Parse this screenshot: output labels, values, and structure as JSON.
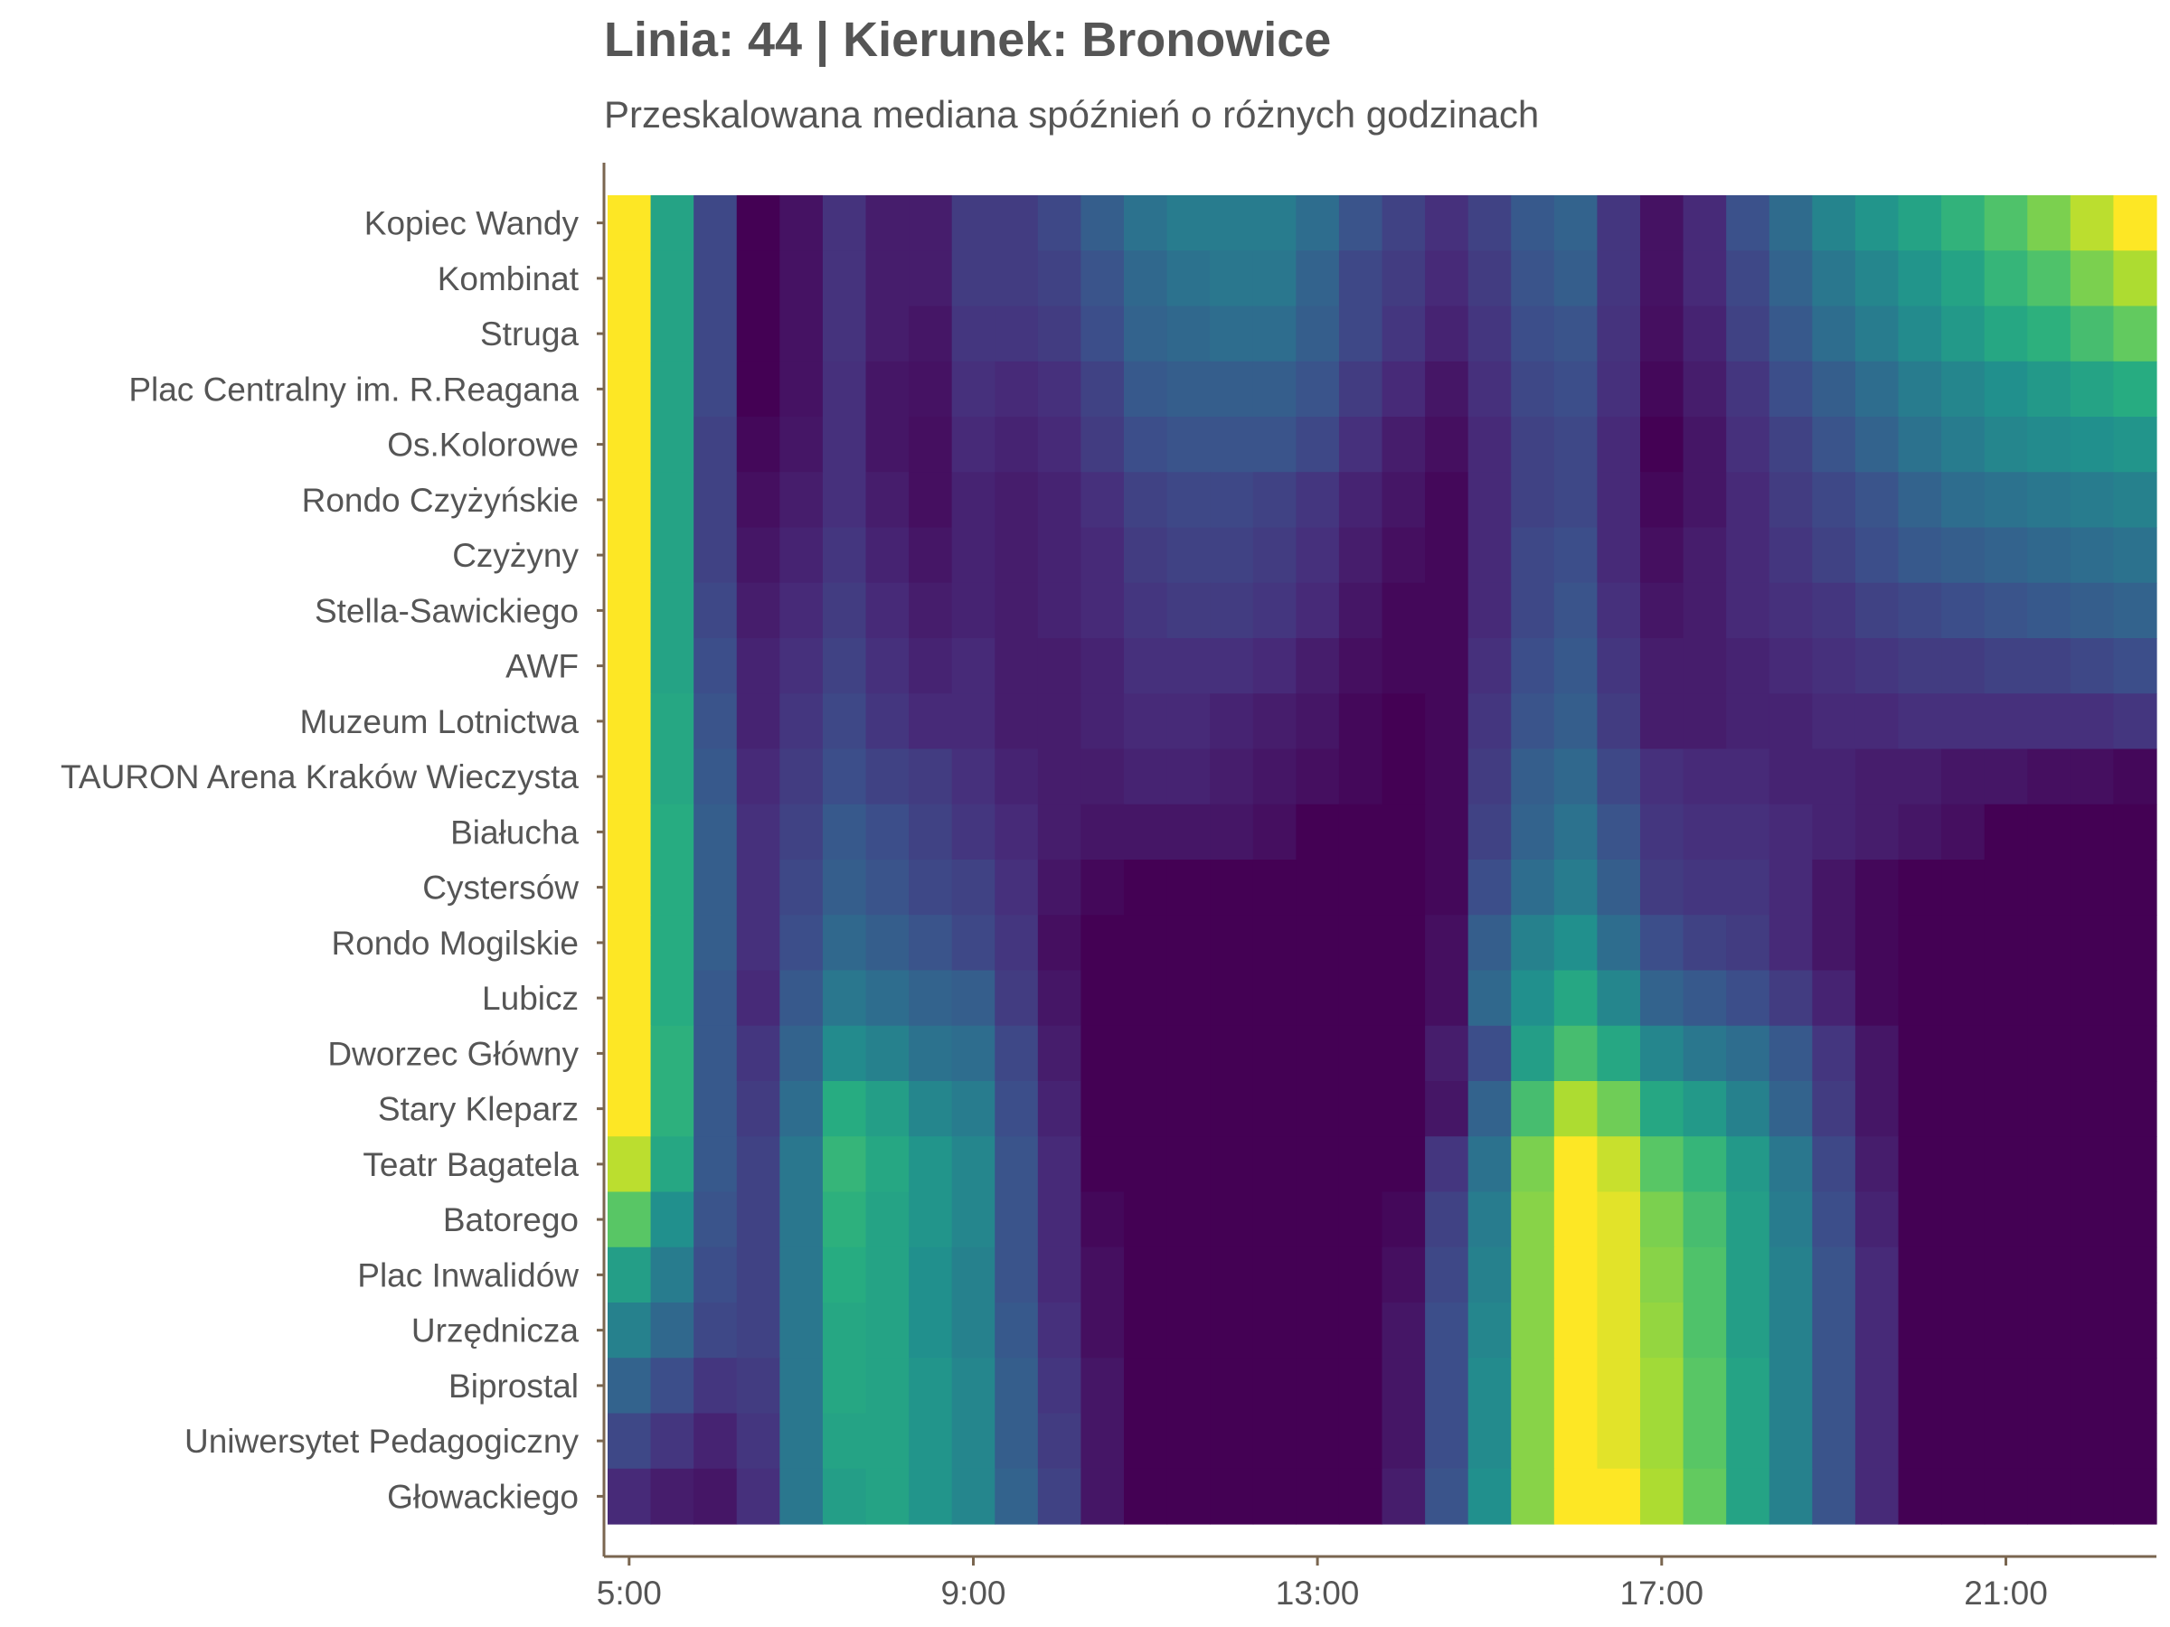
{
  "chart_data": {
    "type": "heatmap",
    "title": "Linia: 44 | Kierunek: Bronowice",
    "subtitle": "Przeskalowana mediana spóźnień o różnych godzinach",
    "xlabel": "",
    "ylabel": "",
    "x": [
      "5:00",
      "5:30",
      "6:00",
      "6:30",
      "7:00",
      "7:30",
      "8:00",
      "8:30",
      "9:00",
      "9:30",
      "10:00",
      "10:30",
      "11:00",
      "11:30",
      "12:00",
      "12:30",
      "13:00",
      "13:30",
      "14:00",
      "14:30",
      "15:00",
      "15:30",
      "16:00",
      "16:30",
      "17:00",
      "17:30",
      "18:00",
      "18:30",
      "19:00",
      "19:30",
      "20:00",
      "20:30",
      "21:00",
      "21:30",
      "22:00",
      "22:30"
    ],
    "x_tick_labels": [
      "5:00",
      "9:00",
      "13:00",
      "17:00",
      "21:00"
    ],
    "categories": [
      "Kopiec Wandy",
      "Kombinat",
      "Struga",
      "Plac Centralny im. R.Reagana",
      "Os.Kolorowe",
      "Rondo Czyżyńskie",
      "Czyżyny",
      "Stella-Sawickiego",
      "AWF",
      "Muzeum Lotnictwa",
      "TAURON Arena Kraków Wieczysta",
      "Białucha",
      "Cystersów",
      "Rondo Mogilskie",
      "Lubicz",
      "Dworzec Główny",
      "Stary Kleparz",
      "Teatr Bagatela",
      "Batorego",
      "Plac Inwalidów",
      "Urzędnicza",
      "Biprostal",
      "Uniwersytet Pedagogiczny",
      "Głowackiego"
    ],
    "colormap": "viridis",
    "value_range": [
      0,
      1
    ],
    "grid": false,
    "legend": "none",
    "values": [
      [
        1.0,
        0.58,
        0.22,
        0.0,
        0.05,
        0.15,
        0.08,
        0.08,
        0.18,
        0.18,
        0.22,
        0.3,
        0.38,
        0.42,
        0.42,
        0.42,
        0.36,
        0.26,
        0.2,
        0.14,
        0.2,
        0.28,
        0.32,
        0.16,
        0.05,
        0.12,
        0.25,
        0.35,
        0.45,
        0.52,
        0.58,
        0.65,
        0.72,
        0.8,
        0.9,
        1.0
      ],
      [
        1.0,
        0.58,
        0.22,
        0.0,
        0.05,
        0.15,
        0.08,
        0.08,
        0.18,
        0.18,
        0.2,
        0.26,
        0.34,
        0.38,
        0.4,
        0.4,
        0.32,
        0.22,
        0.18,
        0.12,
        0.18,
        0.26,
        0.3,
        0.16,
        0.05,
        0.12,
        0.22,
        0.32,
        0.4,
        0.46,
        0.52,
        0.58,
        0.66,
        0.72,
        0.8,
        0.88
      ],
      [
        1.0,
        0.58,
        0.22,
        0.0,
        0.05,
        0.15,
        0.08,
        0.06,
        0.16,
        0.16,
        0.18,
        0.24,
        0.32,
        0.34,
        0.36,
        0.36,
        0.3,
        0.22,
        0.16,
        0.1,
        0.16,
        0.24,
        0.26,
        0.15,
        0.04,
        0.1,
        0.2,
        0.28,
        0.36,
        0.42,
        0.48,
        0.54,
        0.6,
        0.64,
        0.7,
        0.76
      ],
      [
        1.0,
        0.58,
        0.22,
        0.0,
        0.05,
        0.14,
        0.06,
        0.05,
        0.14,
        0.12,
        0.14,
        0.2,
        0.28,
        0.3,
        0.3,
        0.3,
        0.26,
        0.18,
        0.12,
        0.06,
        0.14,
        0.22,
        0.24,
        0.14,
        0.02,
        0.08,
        0.16,
        0.24,
        0.3,
        0.36,
        0.42,
        0.46,
        0.5,
        0.54,
        0.58,
        0.62
      ],
      [
        1.0,
        0.58,
        0.2,
        0.02,
        0.06,
        0.14,
        0.06,
        0.04,
        0.12,
        0.1,
        0.12,
        0.18,
        0.24,
        0.26,
        0.26,
        0.26,
        0.22,
        0.14,
        0.08,
        0.04,
        0.12,
        0.2,
        0.22,
        0.12,
        0.0,
        0.06,
        0.14,
        0.2,
        0.26,
        0.32,
        0.38,
        0.42,
        0.46,
        0.48,
        0.5,
        0.52
      ],
      [
        1.0,
        0.58,
        0.2,
        0.04,
        0.08,
        0.14,
        0.08,
        0.04,
        0.1,
        0.08,
        0.1,
        0.14,
        0.2,
        0.22,
        0.22,
        0.2,
        0.16,
        0.1,
        0.06,
        0.02,
        0.12,
        0.2,
        0.22,
        0.12,
        0.02,
        0.06,
        0.12,
        0.18,
        0.22,
        0.26,
        0.32,
        0.36,
        0.38,
        0.4,
        0.42,
        0.44
      ],
      [
        1.0,
        0.58,
        0.2,
        0.06,
        0.1,
        0.16,
        0.1,
        0.06,
        0.1,
        0.08,
        0.1,
        0.12,
        0.18,
        0.2,
        0.2,
        0.18,
        0.14,
        0.08,
        0.04,
        0.02,
        0.12,
        0.22,
        0.24,
        0.12,
        0.04,
        0.08,
        0.12,
        0.16,
        0.2,
        0.24,
        0.28,
        0.3,
        0.32,
        0.34,
        0.36,
        0.38
      ],
      [
        1.0,
        0.58,
        0.22,
        0.08,
        0.12,
        0.18,
        0.12,
        0.08,
        0.1,
        0.08,
        0.1,
        0.12,
        0.16,
        0.18,
        0.18,
        0.16,
        0.12,
        0.06,
        0.02,
        0.02,
        0.12,
        0.22,
        0.26,
        0.14,
        0.06,
        0.08,
        0.12,
        0.14,
        0.16,
        0.2,
        0.22,
        0.24,
        0.26,
        0.28,
        0.3,
        0.32
      ],
      [
        1.0,
        0.58,
        0.24,
        0.1,
        0.14,
        0.2,
        0.14,
        0.1,
        0.12,
        0.08,
        0.08,
        0.1,
        0.14,
        0.14,
        0.14,
        0.12,
        0.08,
        0.04,
        0.02,
        0.02,
        0.14,
        0.24,
        0.28,
        0.16,
        0.08,
        0.08,
        0.1,
        0.12,
        0.14,
        0.16,
        0.18,
        0.18,
        0.2,
        0.2,
        0.22,
        0.24
      ],
      [
        1.0,
        0.6,
        0.26,
        0.1,
        0.16,
        0.22,
        0.16,
        0.12,
        0.12,
        0.08,
        0.08,
        0.1,
        0.12,
        0.12,
        0.1,
        0.08,
        0.06,
        0.02,
        0.0,
        0.02,
        0.16,
        0.26,
        0.3,
        0.18,
        0.08,
        0.08,
        0.1,
        0.1,
        0.12,
        0.12,
        0.14,
        0.14,
        0.14,
        0.14,
        0.14,
        0.16
      ],
      [
        1.0,
        0.6,
        0.28,
        0.12,
        0.18,
        0.24,
        0.2,
        0.18,
        0.14,
        0.1,
        0.08,
        0.08,
        0.1,
        0.1,
        0.08,
        0.06,
        0.04,
        0.02,
        0.0,
        0.02,
        0.18,
        0.3,
        0.34,
        0.22,
        0.14,
        0.12,
        0.12,
        0.1,
        0.1,
        0.08,
        0.08,
        0.06,
        0.06,
        0.04,
        0.04,
        0.02
      ],
      [
        1.0,
        0.62,
        0.3,
        0.14,
        0.2,
        0.28,
        0.24,
        0.2,
        0.16,
        0.12,
        0.08,
        0.06,
        0.06,
        0.06,
        0.06,
        0.04,
        0.0,
        0.0,
        0.0,
        0.02,
        0.2,
        0.32,
        0.38,
        0.26,
        0.16,
        0.14,
        0.14,
        0.12,
        0.1,
        0.08,
        0.06,
        0.04,
        0.0,
        0.0,
        0.0,
        0.0
      ],
      [
        1.0,
        0.62,
        0.3,
        0.14,
        0.22,
        0.3,
        0.26,
        0.22,
        0.2,
        0.14,
        0.06,
        0.02,
        0.0,
        0.0,
        0.0,
        0.0,
        0.0,
        0.0,
        0.0,
        0.02,
        0.24,
        0.36,
        0.42,
        0.3,
        0.18,
        0.16,
        0.16,
        0.12,
        0.06,
        0.02,
        0.0,
        0.0,
        0.0,
        0.0,
        0.0,
        0.0
      ],
      [
        1.0,
        0.62,
        0.3,
        0.14,
        0.24,
        0.34,
        0.3,
        0.26,
        0.22,
        0.16,
        0.04,
        0.0,
        0.0,
        0.0,
        0.0,
        0.0,
        0.0,
        0.0,
        0.0,
        0.04,
        0.3,
        0.44,
        0.5,
        0.36,
        0.24,
        0.2,
        0.18,
        0.12,
        0.06,
        0.02,
        0.0,
        0.0,
        0.0,
        0.0,
        0.0,
        0.0
      ],
      [
        1.0,
        0.62,
        0.28,
        0.12,
        0.28,
        0.4,
        0.36,
        0.32,
        0.3,
        0.18,
        0.06,
        0.0,
        0.0,
        0.0,
        0.0,
        0.0,
        0.0,
        0.0,
        0.0,
        0.04,
        0.34,
        0.5,
        0.6,
        0.46,
        0.32,
        0.28,
        0.24,
        0.18,
        0.1,
        0.02,
        0.0,
        0.0,
        0.0,
        0.0,
        0.0,
        0.0
      ],
      [
        1.0,
        0.64,
        0.28,
        0.16,
        0.32,
        0.48,
        0.44,
        0.38,
        0.36,
        0.22,
        0.08,
        0.0,
        0.0,
        0.0,
        0.0,
        0.0,
        0.0,
        0.0,
        0.0,
        0.08,
        0.24,
        0.56,
        0.7,
        0.6,
        0.46,
        0.4,
        0.36,
        0.28,
        0.16,
        0.06,
        0.0,
        0.0,
        0.0,
        0.0,
        0.0,
        0.0
      ],
      [
        1.0,
        0.64,
        0.28,
        0.18,
        0.36,
        0.62,
        0.56,
        0.46,
        0.42,
        0.24,
        0.1,
        0.0,
        0.0,
        0.0,
        0.0,
        0.0,
        0.0,
        0.0,
        0.0,
        0.06,
        0.32,
        0.7,
        0.88,
        0.78,
        0.6,
        0.54,
        0.44,
        0.32,
        0.18,
        0.06,
        0.0,
        0.0,
        0.0,
        0.0,
        0.0,
        0.0
      ],
      [
        0.9,
        0.6,
        0.28,
        0.2,
        0.4,
        0.66,
        0.6,
        0.52,
        0.46,
        0.26,
        0.12,
        0.0,
        0.0,
        0.0,
        0.0,
        0.0,
        0.0,
        0.0,
        0.0,
        0.16,
        0.38,
        0.8,
        1.0,
        0.92,
        0.74,
        0.66,
        0.54,
        0.4,
        0.22,
        0.08,
        0.0,
        0.0,
        0.0,
        0.0,
        0.0,
        0.0
      ],
      [
        0.74,
        0.5,
        0.26,
        0.2,
        0.4,
        0.64,
        0.58,
        0.52,
        0.46,
        0.26,
        0.12,
        0.02,
        0.0,
        0.0,
        0.0,
        0.0,
        0.0,
        0.0,
        0.02,
        0.2,
        0.42,
        0.82,
        1.0,
        0.96,
        0.8,
        0.7,
        0.56,
        0.42,
        0.24,
        0.1,
        0.0,
        0.0,
        0.0,
        0.0,
        0.0,
        0.0
      ],
      [
        0.56,
        0.42,
        0.24,
        0.2,
        0.4,
        0.62,
        0.58,
        0.5,
        0.44,
        0.26,
        0.12,
        0.04,
        0.0,
        0.0,
        0.0,
        0.0,
        0.0,
        0.0,
        0.04,
        0.22,
        0.44,
        0.82,
        1.0,
        0.96,
        0.82,
        0.72,
        0.56,
        0.44,
        0.26,
        0.12,
        0.0,
        0.0,
        0.0,
        0.0,
        0.0,
        0.0
      ],
      [
        0.44,
        0.34,
        0.22,
        0.2,
        0.4,
        0.6,
        0.58,
        0.5,
        0.44,
        0.28,
        0.14,
        0.04,
        0.0,
        0.0,
        0.0,
        0.0,
        0.0,
        0.0,
        0.06,
        0.24,
        0.46,
        0.82,
        1.0,
        0.96,
        0.84,
        0.72,
        0.56,
        0.44,
        0.26,
        0.12,
        0.0,
        0.0,
        0.0,
        0.0,
        0.0,
        0.0
      ],
      [
        0.32,
        0.24,
        0.16,
        0.18,
        0.4,
        0.6,
        0.58,
        0.52,
        0.46,
        0.3,
        0.16,
        0.06,
        0.0,
        0.0,
        0.0,
        0.0,
        0.0,
        0.0,
        0.06,
        0.24,
        0.48,
        0.82,
        1.0,
        0.96,
        0.86,
        0.74,
        0.58,
        0.44,
        0.26,
        0.12,
        0.0,
        0.0,
        0.0,
        0.0,
        0.0,
        0.0
      ],
      [
        0.22,
        0.16,
        0.1,
        0.16,
        0.4,
        0.58,
        0.58,
        0.52,
        0.46,
        0.3,
        0.18,
        0.06,
        0.0,
        0.0,
        0.0,
        0.0,
        0.0,
        0.0,
        0.06,
        0.24,
        0.48,
        0.82,
        1.0,
        0.96,
        0.86,
        0.74,
        0.58,
        0.44,
        0.26,
        0.12,
        0.0,
        0.0,
        0.0,
        0.0,
        0.0,
        0.0
      ],
      [
        0.12,
        0.08,
        0.06,
        0.14,
        0.4,
        0.56,
        0.58,
        0.52,
        0.46,
        0.32,
        0.2,
        0.06,
        0.0,
        0.0,
        0.0,
        0.0,
        0.0,
        0.0,
        0.08,
        0.26,
        0.5,
        0.82,
        1.0,
        1.0,
        0.88,
        0.76,
        0.58,
        0.44,
        0.26,
        0.12,
        0.0,
        0.0,
        0.0,
        0.0,
        0.0,
        0.0
      ]
    ]
  }
}
